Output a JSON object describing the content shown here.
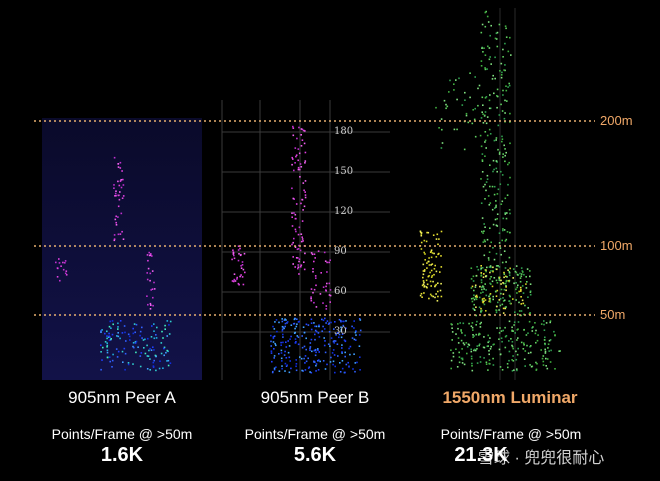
{
  "range_lines": [
    {
      "label": "200m"
    },
    {
      "label": "100m"
    },
    {
      "label": "50m"
    }
  ],
  "panels": [
    {
      "title": "905nm Peer A",
      "subtitle": "Points/Frame @ >50m",
      "value": "1.6K",
      "highlight": false
    },
    {
      "title": "905nm Peer B",
      "subtitle": "Points/Frame @ >50m",
      "value": "5.6K",
      "highlight": false
    },
    {
      "title": "1550nm Luminar",
      "subtitle": "Points/Frame @ >50m",
      "value": "21.3K",
      "highlight": true
    }
  ],
  "peer_b_ticks": [
    "180",
    "150",
    "120",
    "90",
    "60",
    "30"
  ],
  "watermark": "雪球 · 兜兜很耐心",
  "colors": {
    "range_line": "#e8b070",
    "highlight": "#f0a868",
    "text": "#ffffff"
  }
}
